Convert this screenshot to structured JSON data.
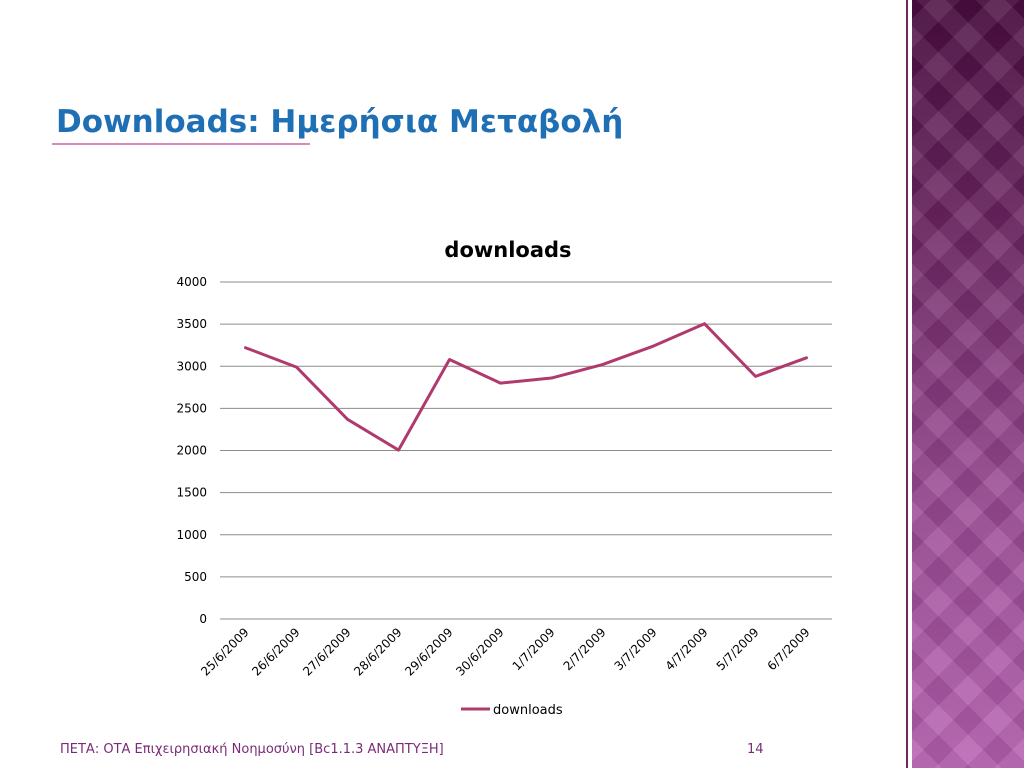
{
  "slide": {
    "title": "Downloads: Ημερήσια Μεταβολή",
    "footer_left": "ΠΕΤΑ: ΟΤΑ Επιχειρησιακή Νοημοσύνη [Bc1.1.3 ΑΝΑΠΤΥΞΗ]",
    "footer_right": "14"
  },
  "colors": {
    "title": "#1f6fb5",
    "series": "#b03a6e",
    "grid": "#8c8c8c",
    "side_band": "#8a3d86",
    "footer": "#7a2b77"
  },
  "chart_data": {
    "type": "line",
    "title": "downloads",
    "categories": [
      "25/6/2009",
      "26/6/2009",
      "27/6/2009",
      "28/6/2009",
      "29/6/2009",
      "30/6/2009",
      "1/7/2009",
      "2/7/2009",
      "3/7/2009",
      "4/7/2009",
      "5/7/2009",
      "6/7/2009"
    ],
    "series": [
      {
        "name": "downloads",
        "values": [
          3220,
          2990,
          2370,
          2005,
          3080,
          2800,
          2860,
          3020,
          3240,
          3505,
          2880,
          3100
        ]
      }
    ],
    "ylim": [
      0,
      4000
    ],
    "yticks": [
      "0",
      "500",
      "1000",
      "1500",
      "2000",
      "2500",
      "3000",
      "3500",
      "4000"
    ],
    "grid": true,
    "legend": "bottom"
  }
}
